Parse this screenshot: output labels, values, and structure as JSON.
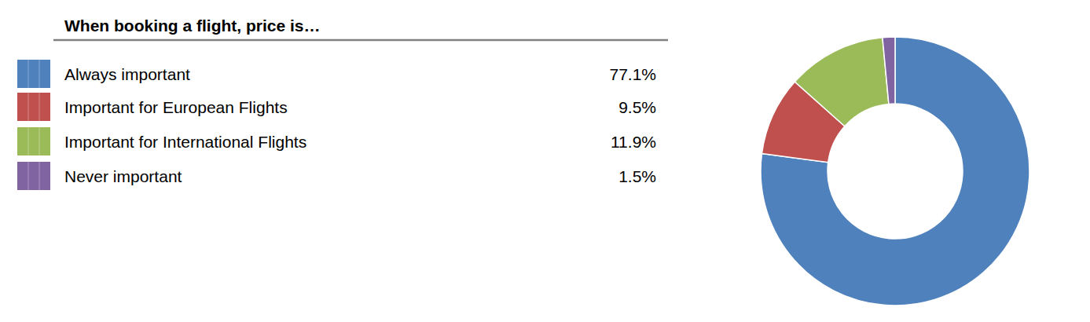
{
  "chart_data": {
    "type": "donut",
    "title": "When booking a flight, price is…",
    "categories": [
      "Always important",
      "Important for European Flights",
      "Important for International Flights",
      "Never important"
    ],
    "values": [
      77.1,
      9.5,
      11.9,
      1.5
    ],
    "value_labels": [
      "77.1%",
      "9.5%",
      "11.9%",
      "1.5%"
    ],
    "colors": [
      "#4F81BD",
      "#C0504D",
      "#9BBB59",
      "#8064A2"
    ],
    "legend": "left"
  }
}
